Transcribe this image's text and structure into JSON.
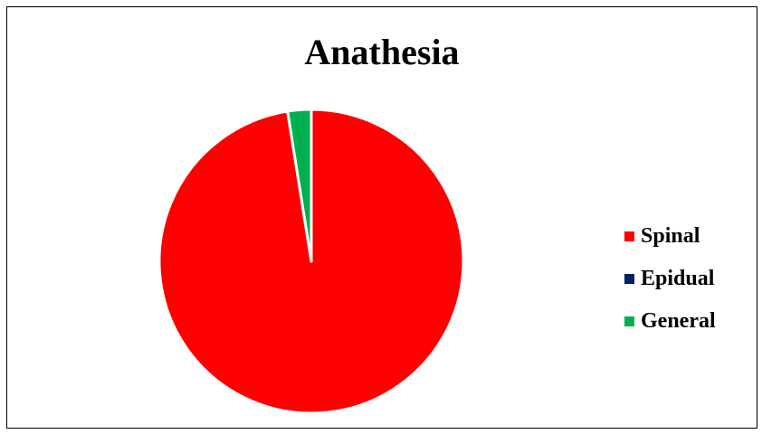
{
  "chart_data": {
    "type": "pie",
    "title": "Anathesia",
    "slices": [
      {
        "label": "Spinal",
        "value": 97.5,
        "color": "#ff0000"
      },
      {
        "label": "Epidual",
        "value": 0,
        "color": "#002060"
      },
      {
        "label": "General",
        "value": 2.5,
        "color": "#00b050"
      }
    ],
    "legend": "right"
  }
}
